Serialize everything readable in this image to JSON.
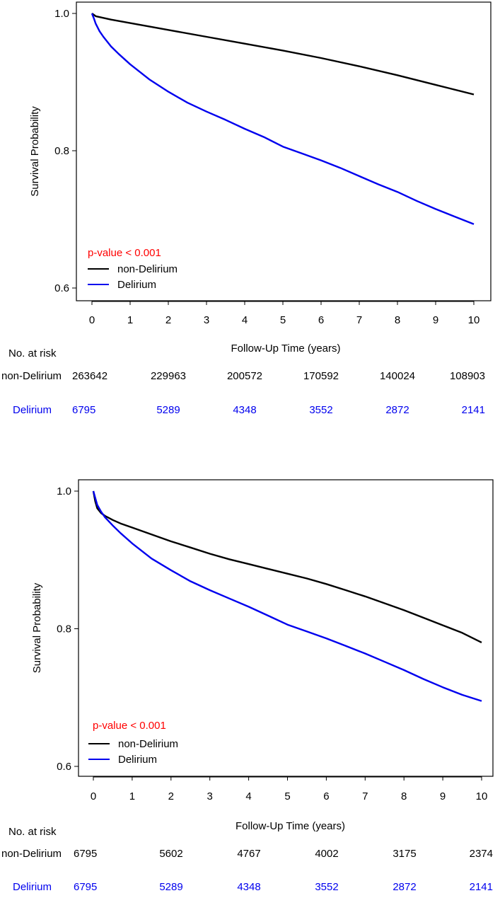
{
  "colors": {
    "non_delirium": "#000000",
    "delirium": "#0000ee",
    "pvalue": "#ff0000",
    "axis": "#000000"
  },
  "chart_data": [
    {
      "type": "line",
      "title": "",
      "xlabel": "Follow-Up Time (years)",
      "ylabel": "Survival Probability",
      "xlim": [
        0,
        10
      ],
      "ylim": [
        0.6,
        1.0
      ],
      "x_ticks": [
        "0",
        "1",
        "2",
        "3",
        "4",
        "5",
        "6",
        "7",
        "8",
        "9",
        "10"
      ],
      "y_ticks": [
        "0.6",
        "0.8",
        "1.0"
      ],
      "annotation": "p-value < 0.001",
      "legend": [
        "non-Delirium",
        "Delirium"
      ],
      "legend_position": "bottom-left",
      "series": [
        {
          "name": "non-Delirium",
          "x": [
            0,
            0.1,
            0.5,
            1,
            2,
            3,
            4,
            5,
            6,
            7,
            8,
            9,
            10
          ],
          "y": [
            1.0,
            0.996,
            0.991,
            0.986,
            0.976,
            0.966,
            0.956,
            0.946,
            0.935,
            0.923,
            0.91,
            0.896,
            0.882
          ]
        },
        {
          "name": "Delirium",
          "x": [
            0,
            0.05,
            0.1,
            0.2,
            0.3,
            0.5,
            0.7,
            1,
            1.5,
            2,
            2.5,
            3,
            3.5,
            4,
            4.5,
            5,
            5.5,
            6,
            6.5,
            7,
            7.5,
            8,
            8.5,
            9,
            9.5,
            10
          ],
          "y": [
            1.0,
            0.993,
            0.985,
            0.974,
            0.966,
            0.952,
            0.941,
            0.926,
            0.904,
            0.886,
            0.87,
            0.857,
            0.845,
            0.832,
            0.82,
            0.806,
            0.796,
            0.786,
            0.775,
            0.763,
            0.751,
            0.74,
            0.727,
            0.715,
            0.704,
            0.693
          ]
        }
      ],
      "risk_table": {
        "header": "No. at risk",
        "rows": [
          {
            "label": "non-Delirium",
            "values": [
              "263642",
              "229963",
              "200572",
              "170592",
              "140024",
              "108903"
            ]
          },
          {
            "label": "Delirium",
            "values": [
              "6795",
              "5289",
              "4348",
              "3552",
              "2872",
              "2141"
            ]
          }
        ]
      }
    },
    {
      "type": "line",
      "title": "",
      "xlabel": "Follow-Up Time (years)",
      "ylabel": "Survival Probability",
      "xlim": [
        0,
        10
      ],
      "ylim": [
        0.6,
        1.0
      ],
      "x_ticks": [
        "0",
        "1",
        "2",
        "3",
        "4",
        "5",
        "6",
        "7",
        "8",
        "9",
        "10"
      ],
      "y_ticks": [
        "0.6",
        "0.8",
        "1.0"
      ],
      "annotation": "p-value < 0.001",
      "legend": [
        "non-Delirium",
        "Delirium"
      ],
      "legend_position": "bottom-left",
      "series": [
        {
          "name": "non-Delirium",
          "x": [
            0,
            0.05,
            0.1,
            0.2,
            0.3,
            0.5,
            0.7,
            1,
            1.5,
            2,
            2.5,
            3,
            3.5,
            4,
            4.5,
            5,
            5.5,
            6,
            6.5,
            7,
            7.5,
            8,
            8.5,
            9,
            9.5,
            10
          ],
          "y": [
            1.0,
            0.985,
            0.975,
            0.968,
            0.964,
            0.958,
            0.953,
            0.947,
            0.937,
            0.927,
            0.918,
            0.909,
            0.901,
            0.894,
            0.887,
            0.88,
            0.873,
            0.865,
            0.856,
            0.847,
            0.837,
            0.827,
            0.816,
            0.805,
            0.794,
            0.78
          ]
        },
        {
          "name": "Delirium",
          "x": [
            0,
            0.05,
            0.1,
            0.2,
            0.3,
            0.5,
            0.7,
            1,
            1.5,
            2,
            2.5,
            3,
            3.5,
            4,
            4.5,
            5,
            5.5,
            6,
            6.5,
            7,
            7.5,
            8,
            8.5,
            9,
            9.5,
            10
          ],
          "y": [
            1.0,
            0.99,
            0.98,
            0.97,
            0.962,
            0.95,
            0.939,
            0.924,
            0.902,
            0.885,
            0.869,
            0.856,
            0.844,
            0.832,
            0.819,
            0.806,
            0.796,
            0.786,
            0.775,
            0.764,
            0.752,
            0.74,
            0.727,
            0.715,
            0.704,
            0.695
          ]
        }
      ],
      "risk_table": {
        "header": "No. at risk",
        "rows": [
          {
            "label": "non-Delirium",
            "values": [
              "6795",
              "5602",
              "4767",
              "4002",
              "3175",
              "2374"
            ]
          },
          {
            "label": "Delirium",
            "values": [
              "6795",
              "5289",
              "4348",
              "3552",
              "2872",
              "2141"
            ]
          }
        ]
      }
    }
  ]
}
